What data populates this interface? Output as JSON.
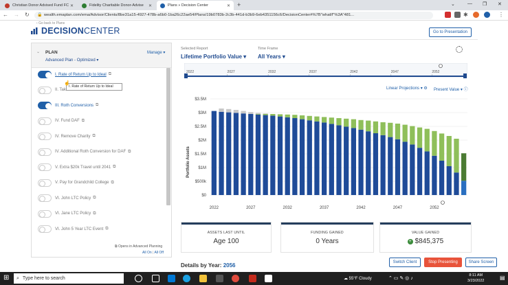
{
  "browser": {
    "tabs": [
      {
        "label": "Christian Donor Advised Fund FC",
        "color": "#c0392b"
      },
      {
        "label": "Fidelity Charitable Donor-Advise",
        "color": "#2e7d32"
      },
      {
        "label": "Plans » Decision Center",
        "color": "#1f5fa8"
      }
    ],
    "new_tab": "+",
    "url": "wealth.emaplan.com/ema/Advisor/Clients/8be31a15-4927-478b-a6b0-1ba26c22ae54/Plans/19b0783b-2c3b-441d-b3b9-6eb4351156c6/DecisionCenter#%7B\"whatIf\"%3A\"481..."
  },
  "header": {
    "go_back": "Go back to Plans",
    "logo_bold": "DECISION",
    "logo_thin": "CENTER",
    "presentation_button": "Go to Presentation"
  },
  "plan": {
    "title": "PLAN",
    "selected": "Advanced Plan - Optimized",
    "manage": "Manage"
  },
  "scenarios": [
    {
      "label": "I. Rate of Return Up to Ideal",
      "on": true
    },
    {
      "label": "II. Take SS Now Instead of A70",
      "on": false
    },
    {
      "label": "III. Roth Conversions",
      "on": true
    },
    {
      "label": "IV. Fund DAF",
      "on": false
    },
    {
      "label": "IV. Remove Charity",
      "on": false
    },
    {
      "label": "IV. Additional Roth Conversion for DAF",
      "on": false
    },
    {
      "label": "V. Extra $20k Travel until 2041",
      "on": false
    },
    {
      "label": "V. Pay for Grandchild College",
      "on": false
    },
    {
      "label": "VI. John LTC Policy",
      "on": false
    },
    {
      "label": "VI. Jane LTC Policy",
      "on": false
    },
    {
      "label": "VI. John 5 Year LTC Event",
      "on": false
    }
  ],
  "tooltip": "I. Rate of Return Up to Ideal",
  "sidebar_footer": {
    "advanced_planning": "Opens in Advanced Planning",
    "all_on": "All On",
    "all_off": "All Off"
  },
  "report": {
    "selected_label": "Selected Report",
    "selected_value": "Lifetime Portfolio Value",
    "timeframe_label": "Time Frame",
    "timeframe_value": "All Years",
    "linear": "Linear Projections",
    "present": "Present Value"
  },
  "timeline": {
    "years": [
      "2022",
      "2027",
      "2032",
      "2037",
      "2042",
      "2047",
      "2052"
    ]
  },
  "chart_data": {
    "type": "bar",
    "stacked": true,
    "ylabel": "Portfolio Assets",
    "y_ticks": [
      "$0",
      "$500k",
      "$1M",
      "$1.5M",
      "$2M",
      "$2.5M",
      "$3M",
      "$3.5M"
    ],
    "ylim": [
      0,
      3500000
    ],
    "x_ticks": [
      "2022",
      "2027",
      "2032",
      "2037",
      "2042",
      "2047",
      "2052"
    ],
    "x_start": 2022,
    "x_end": 2056,
    "colors": {
      "base": "#1f4b98",
      "gained": "#8fbf5a",
      "extra": "#c8c8c8",
      "final_dark": "#4b7b33",
      "final_base": "#2a6fc0"
    },
    "series": [
      {
        "name": "base",
        "values": [
          3060000,
          3030000,
          3010000,
          2990000,
          2970000,
          2950000,
          2930000,
          2910000,
          2890000,
          2860000,
          2830000,
          2800000,
          2760000,
          2720000,
          2680000,
          2640000,
          2590000,
          2540000,
          2490000,
          2440000,
          2380000,
          2320000,
          2250000,
          2180000,
          2110000,
          2030000,
          1940000,
          1840000,
          1720000,
          1590000,
          1430000,
          1250000,
          1050000,
          820000,
          520000
        ]
      },
      {
        "name": "gained",
        "values": [
          0,
          0,
          0,
          0,
          0,
          0,
          20000,
          40000,
          60000,
          80000,
          100000,
          120000,
          140000,
          160000,
          180000,
          200000,
          230000,
          260000,
          290000,
          320000,
          350000,
          390000,
          430000,
          470000,
          520000,
          570000,
          620000,
          670000,
          740000,
          820000,
          900000,
          990000,
          1100000,
          1230000,
          1000000
        ]
      },
      {
        "name": "extra",
        "values": [
          0,
          120000,
          120000,
          110000,
          90000,
          70000,
          40000,
          20000,
          0,
          0,
          0,
          0,
          0,
          0,
          0,
          0,
          0,
          0,
          0,
          0,
          0,
          0,
          0,
          0,
          0,
          0,
          0,
          0,
          0,
          0,
          0,
          0,
          0,
          0,
          0
        ]
      }
    ]
  },
  "kpis": [
    {
      "label": "ASSETS LAST UNTIL",
      "value": "Age 100"
    },
    {
      "label": "FUNDING GAINED",
      "value": "0 Years"
    },
    {
      "label": "VALUE GAINED",
      "value": "$845,375"
    }
  ],
  "footer": {
    "details_label": "Details by Year:",
    "details_year": "2056",
    "switch_client": "Switch Client",
    "stop_presenting": "Stop Presenting",
    "share_screen": "Share Screen"
  },
  "taskbar": {
    "search_placeholder": "Type here to search",
    "weather": "55°F  Cloudy",
    "time": "8:11 AM",
    "date": "3/23/2022"
  }
}
